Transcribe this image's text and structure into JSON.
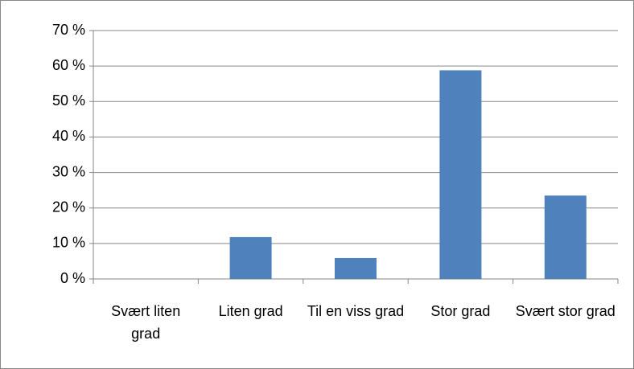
{
  "chart_data": {
    "type": "bar",
    "categories": [
      "Svært liten grad",
      "Liten grad",
      "Til en viss grad",
      "Stor grad",
      "Svært stor grad"
    ],
    "values": [
      0,
      11.8,
      5.9,
      58.8,
      23.5
    ],
    "color": "#4f81bd",
    "ylim": [
      0,
      70
    ],
    "yticks": [
      {
        "value": 0,
        "label": "0 %"
      },
      {
        "value": 10,
        "label": "10 %"
      },
      {
        "value": 20,
        "label": "20 %"
      },
      {
        "value": 30,
        "label": "30 %"
      },
      {
        "value": 40,
        "label": "40 %"
      },
      {
        "value": 50,
        "label": "50 %"
      },
      {
        "value": 60,
        "label": "60 %"
      },
      {
        "value": 70,
        "label": "70 %"
      }
    ],
    "grid": true
  }
}
